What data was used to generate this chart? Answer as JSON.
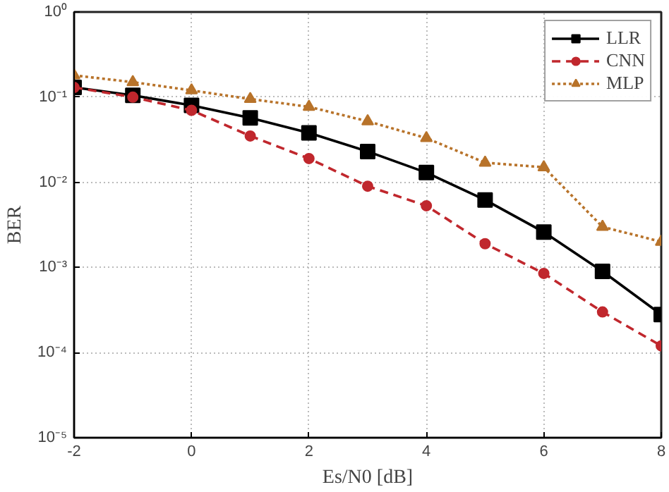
{
  "chart_data": {
    "type": "line",
    "xlabel": "Es/N0 [dB]",
    "ylabel": "BER",
    "x": [
      -2,
      -1,
      0,
      1,
      2,
      3,
      4,
      5,
      6,
      7,
      8
    ],
    "series": [
      {
        "name": "LLR",
        "color": "#000000",
        "marker": "square",
        "line_style": "solid",
        "values": [
          0.13,
          0.105,
          0.08,
          0.057,
          0.038,
          0.023,
          0.013,
          0.0062,
          0.0026,
          0.0009,
          0.00028
        ]
      },
      {
        "name": "CNN",
        "color": "#c0272d",
        "marker": "circle",
        "line_style": "dashed",
        "values": [
          0.13,
          0.1,
          0.07,
          0.035,
          0.019,
          0.009,
          0.0053,
          0.0019,
          0.00085,
          0.0003,
          0.00012
        ]
      },
      {
        "name": "MLP",
        "color": "#b8732a",
        "marker": "triangle",
        "line_style": "dotted",
        "values": [
          0.18,
          0.15,
          0.12,
          0.095,
          0.077,
          0.052,
          0.033,
          0.017,
          0.015,
          0.003,
          0.002
        ]
      }
    ],
    "log": "y",
    "xlim": [
      -2,
      8
    ],
    "xticks": [
      -2,
      0,
      2,
      4,
      6,
      8
    ],
    "ylim": [
      1e-05,
      1
    ],
    "yticks": [
      {
        "value": 1e-05,
        "label": "10⁻⁵"
      },
      {
        "value": 0.0001,
        "label": "10⁻⁴"
      },
      {
        "value": 0.001,
        "label": "10⁻³"
      },
      {
        "value": 0.01,
        "label": "10⁻²"
      },
      {
        "value": 0.1,
        "label": "10⁻¹"
      },
      {
        "value": 1,
        "label": "10⁰"
      }
    ],
    "grid": true,
    "legend": "top right"
  }
}
